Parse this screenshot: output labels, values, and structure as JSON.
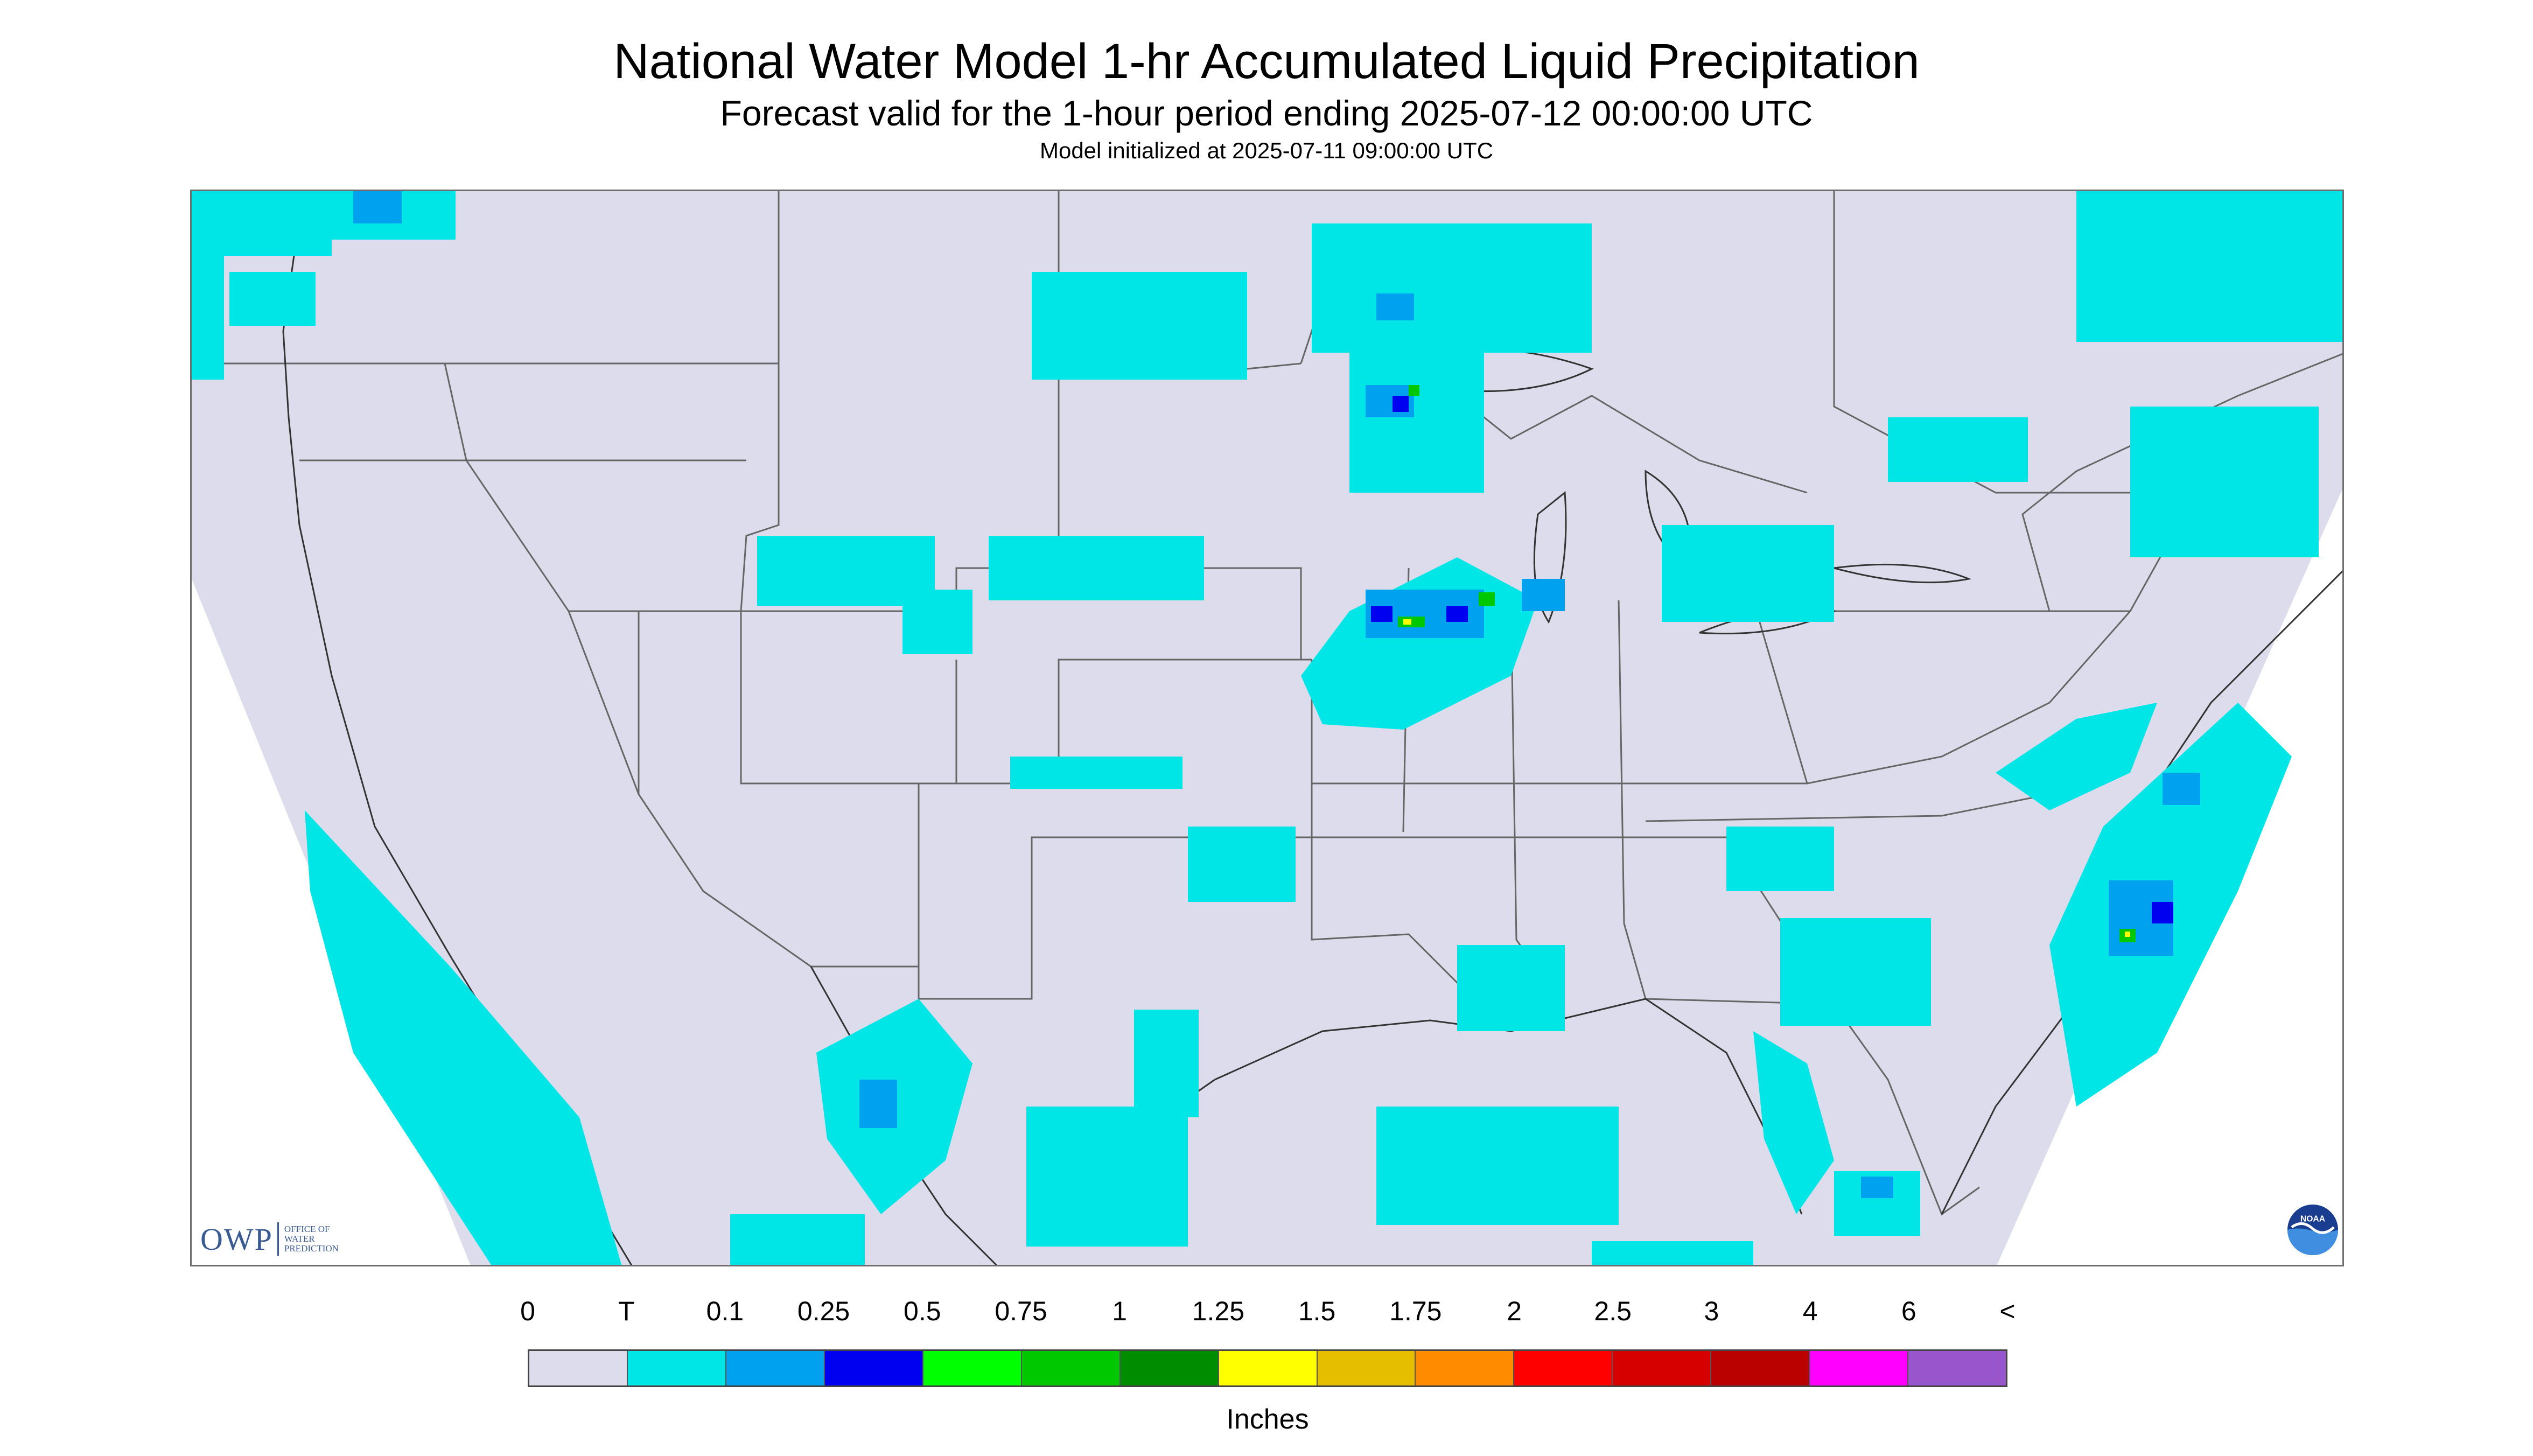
{
  "header": {
    "title": "National Water Model 1-hr Accumulated Liquid Precipitation",
    "subtitle": "Forecast valid for the 1-hour period ending 2025-07-12 00:00:00 UTC",
    "init_line": "Model initialized at 2025-07-11 09:00:00 UTC"
  },
  "map": {
    "background_color": "#dcdcec",
    "outside_color": "#ffffff",
    "border_color": "#555555",
    "region": "CONUS"
  },
  "logos": {
    "owp": {
      "letters": "OWP",
      "words": [
        "OFFICE OF",
        "WATER",
        "PREDICTION"
      ]
    },
    "noaa": {
      "text": "NOAA",
      "icon": "noaa-logo-icon"
    }
  },
  "legend": {
    "unit": "Inches",
    "labels": [
      "0",
      "T",
      "0.1",
      "0.25",
      "0.5",
      "0.75",
      "1",
      "1.25",
      "1.5",
      "1.75",
      "2",
      "2.5",
      "3",
      "4",
      "6",
      "<"
    ],
    "colors": [
      "#dcdcec",
      "#00e5e5",
      "#00a2f0",
      "#0000f0",
      "#00ff00",
      "#00c800",
      "#008c00",
      "#ffff00",
      "#e6be00",
      "#ff8c00",
      "#ff0000",
      "#d70000",
      "#bb0000",
      "#ff00ff",
      "#9955cc"
    ]
  }
}
